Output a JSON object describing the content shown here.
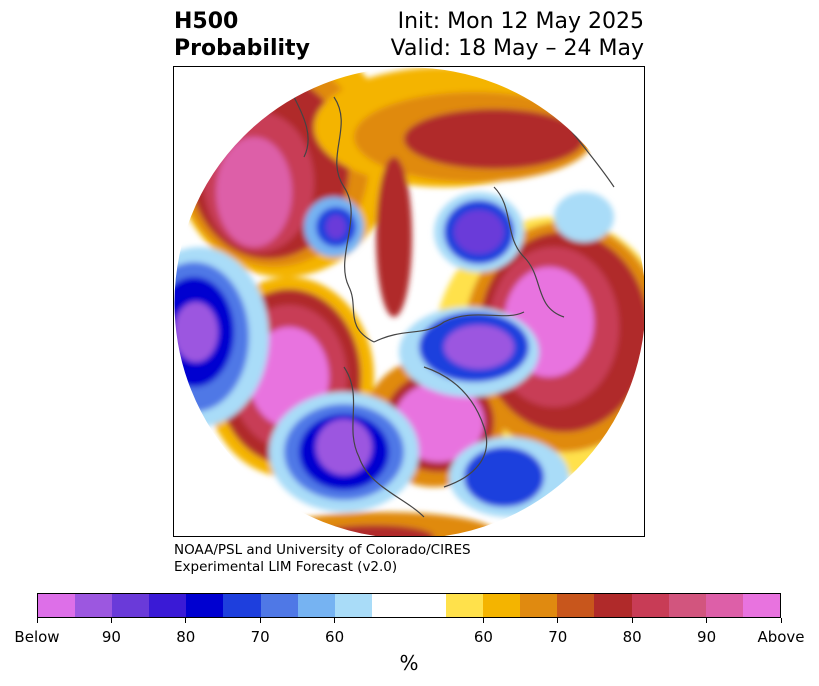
{
  "title": {
    "left_line1": "H500",
    "left_line2": "Probability",
    "right_line1": "Init: Mon 12 May 2025",
    "right_line2": "Valid: 18 May – 24 May"
  },
  "credit": {
    "line1": "NOAA/PSL and University of Colorado/CIRES",
    "line2": "Experimental LIM Forecast (v2.0)"
  },
  "colorbar": {
    "unit": "%",
    "colors": [
      "#dd6fe8",
      "#9c57e0",
      "#6a3ad9",
      "#3a1ad6",
      "#0000d0",
      "#1e3fdd",
      "#4f78e6",
      "#76b3f2",
      "#a9dcf8",
      "#ffffff",
      "#ffffff",
      "#ffe14b",
      "#f4b400",
      "#e08a10",
      "#c8561c",
      "#b02a2a",
      "#c83c56",
      "#d2557e",
      "#dd5fa8",
      "#e873df"
    ],
    "ticks": [
      "Below",
      "90",
      "80",
      "70",
      "60",
      "60",
      "70",
      "80",
      "90",
      "Above"
    ]
  },
  "map": {
    "projection": "north polar stereographic",
    "blue_center": "#5a2fd8",
    "red_center": "#e06ad8"
  }
}
